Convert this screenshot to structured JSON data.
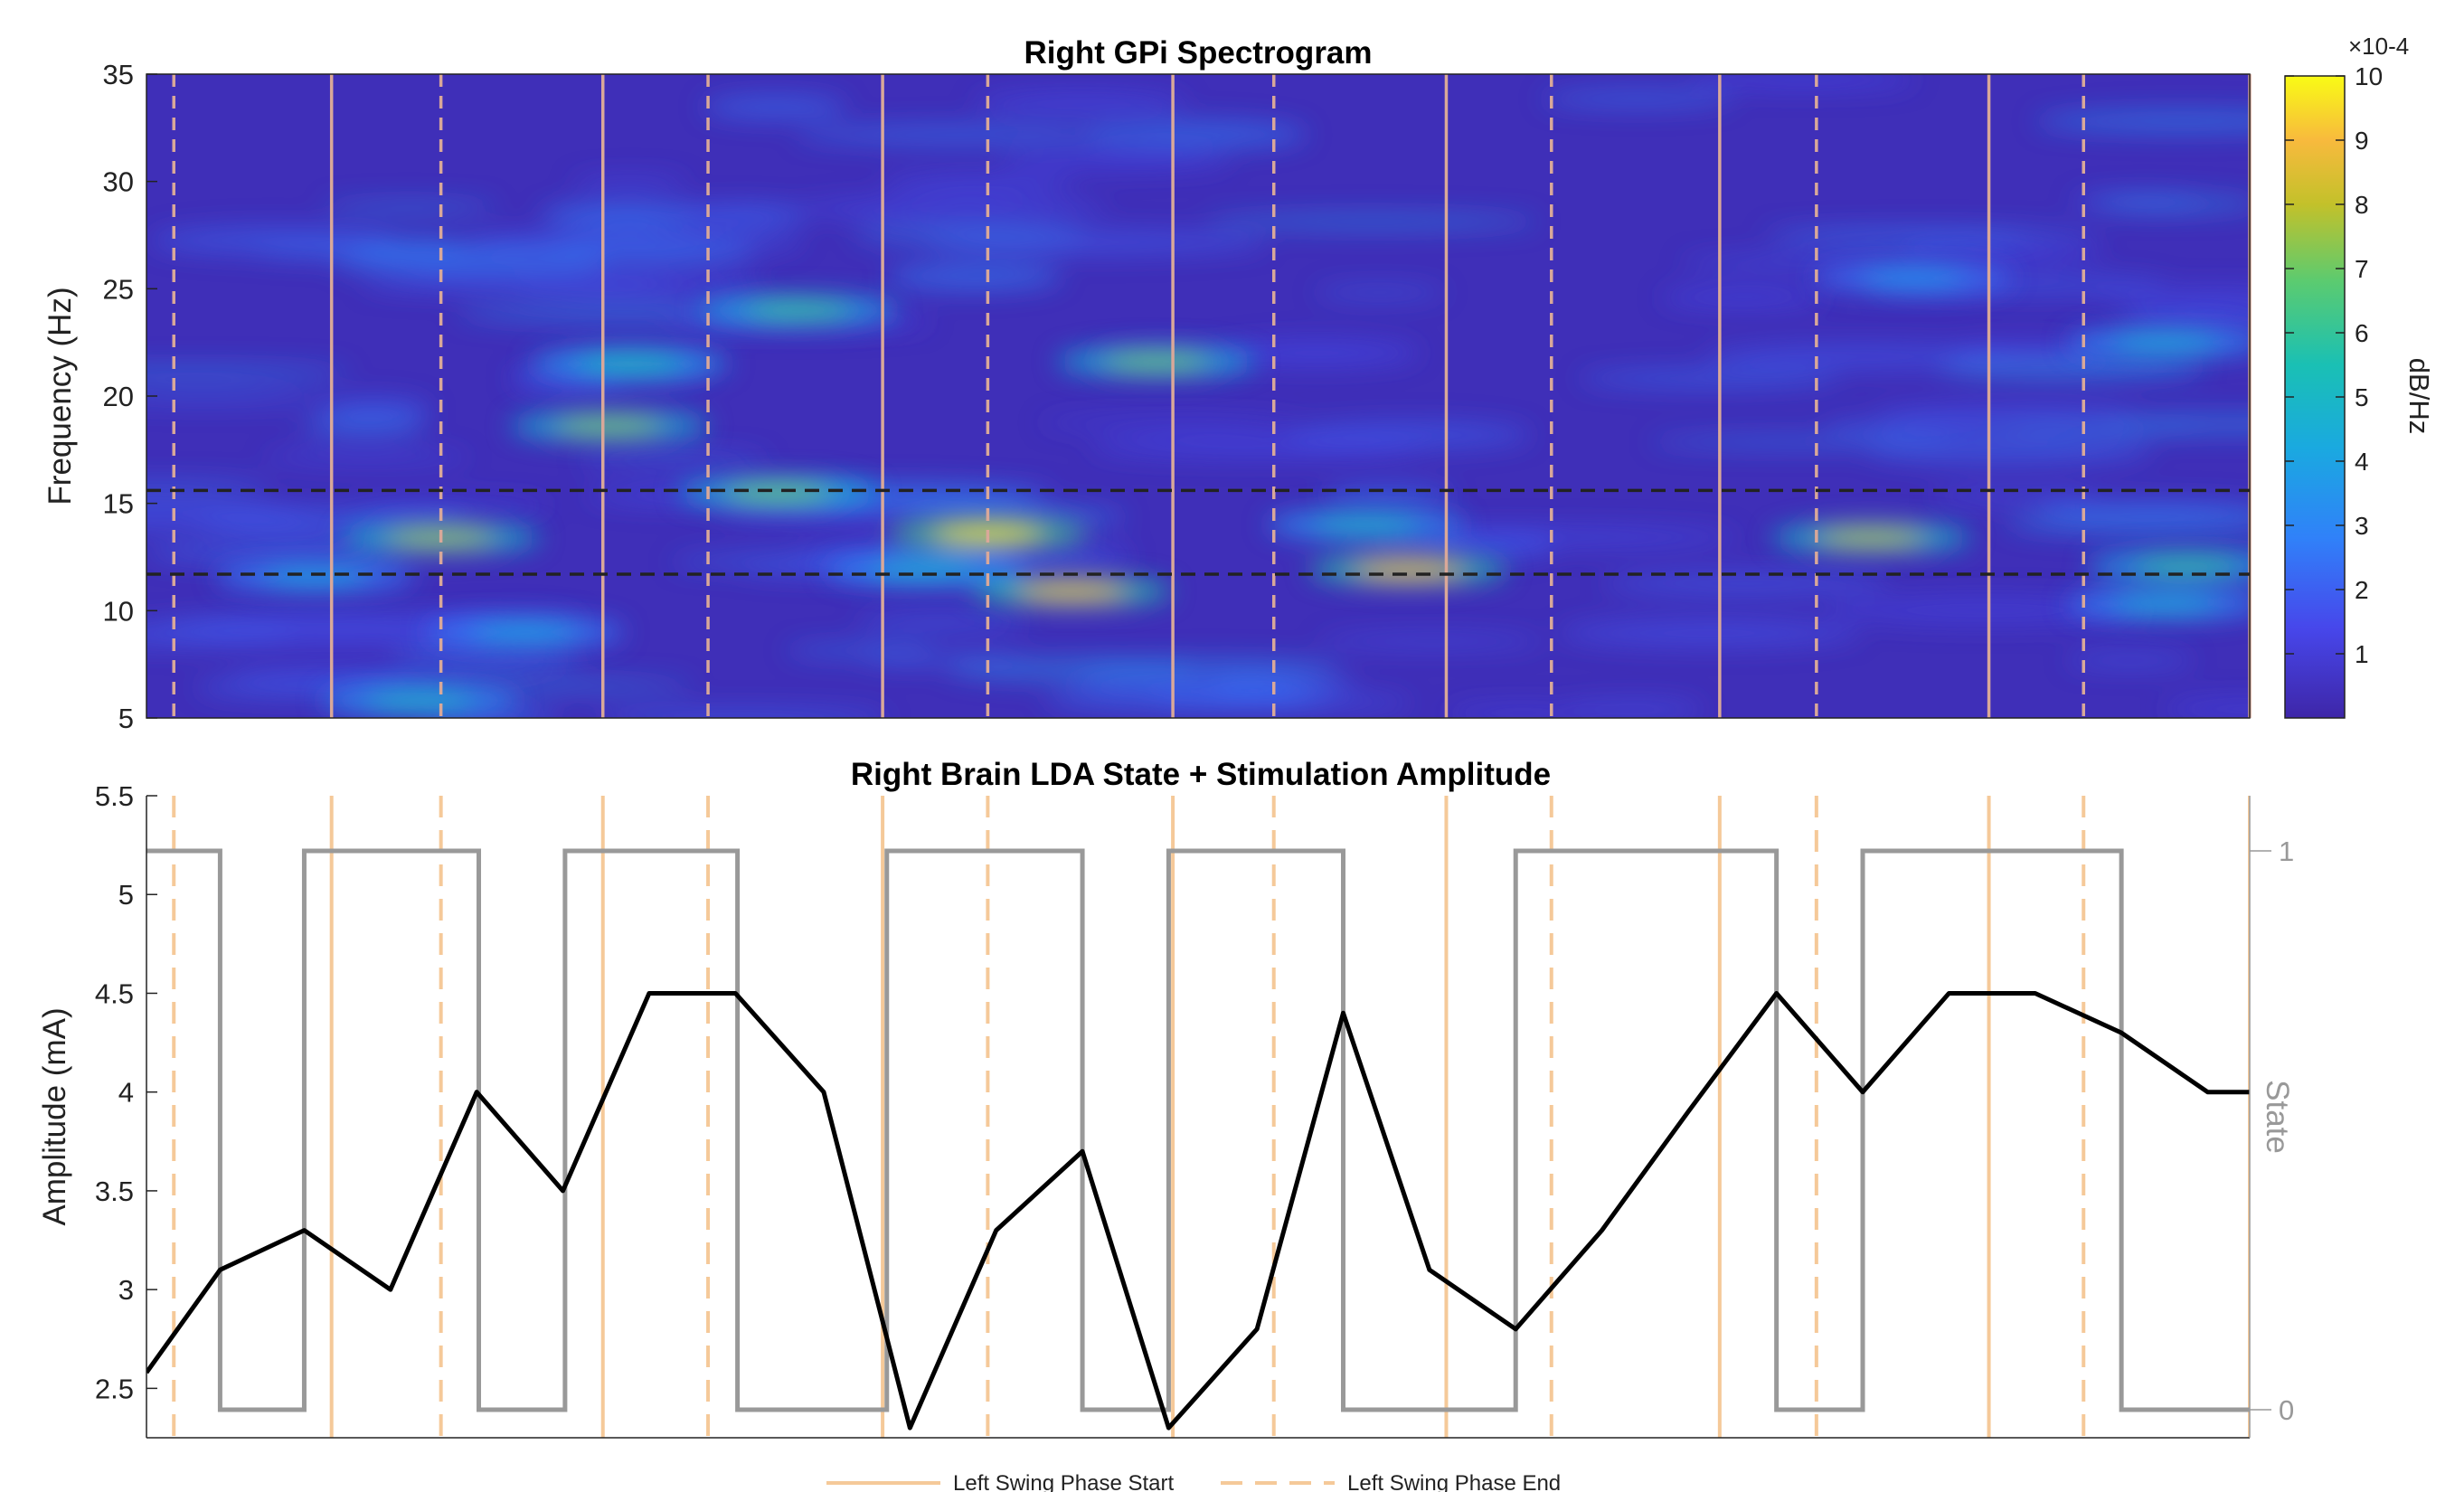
{
  "chart_data": [
    {
      "type": "heatmap",
      "title": "Right GPi Spectrogram",
      "ylabel": "Frequency (Hz)",
      "ylim": [
        5,
        35
      ],
      "yticks": [
        "5",
        "10",
        "15",
        "20",
        "25",
        "30",
        "35"
      ],
      "colorbar": {
        "label": "dB/Hz",
        "exponent": "×10-4",
        "range": [
          0,
          10
        ],
        "ticks": [
          "1",
          "2",
          "3",
          "4",
          "5",
          "6",
          "7",
          "8",
          "9",
          "10"
        ]
      },
      "horizontal_dashed_lines_hz": [
        15.6,
        11.7
      ],
      "x_range": [
        0,
        100
      ],
      "swing_start": [
        8.8,
        21.7,
        35.0,
        48.8,
        61.8,
        74.8,
        87.6,
        100
      ],
      "swing_end": [
        1.3,
        14.0,
        26.7,
        40.0,
        53.6,
        66.8,
        79.4,
        92.1
      ],
      "hotspots": [
        {
          "t": 40.0,
          "f": 13.6,
          "v": 9.8
        },
        {
          "t": 44.0,
          "f": 10.9,
          "v": 8.8
        },
        {
          "t": 60.0,
          "f": 11.9,
          "v": 8.8
        },
        {
          "t": 82.0,
          "f": 13.4,
          "v": 7.8
        },
        {
          "t": 14.0,
          "f": 13.4,
          "v": 7.6
        },
        {
          "t": 30.0,
          "f": 15.5,
          "v": 7.0
        },
        {
          "t": 22.0,
          "f": 18.6,
          "v": 7.2
        },
        {
          "t": 48.0,
          "f": 21.6,
          "v": 7.0
        },
        {
          "t": 31.0,
          "f": 24.0,
          "v": 6.2
        },
        {
          "t": 23.0,
          "f": 21.5,
          "v": 5.5
        },
        {
          "t": 97.0,
          "f": 12.1,
          "v": 6.0
        },
        {
          "t": 13.0,
          "f": 5.8,
          "v": 5.0
        },
        {
          "t": 18.0,
          "f": 9.0,
          "v": 4.2
        },
        {
          "t": 96.0,
          "f": 22.5,
          "v": 4.5
        },
        {
          "t": 84.0,
          "f": 25.5,
          "v": 3.6
        },
        {
          "t": 58.0,
          "f": 14.0,
          "v": 5.0
        },
        {
          "t": 96.0,
          "f": 10.3,
          "v": 4.5
        },
        {
          "t": 8.0,
          "f": 11.6,
          "v": 4.2
        },
        {
          "t": 37.0,
          "f": 11.9,
          "v": 4.8
        }
      ]
    },
    {
      "type": "line",
      "title": "Right Brain LDA State + Stimulation Amplitude",
      "ylabel": "Amplitude (mA)",
      "ylim": [
        2.25,
        5.5
      ],
      "yticks": [
        "2.5",
        "3",
        "3.5",
        "4",
        "4.5",
        "5",
        "5.5"
      ],
      "y2label": "State",
      "y2ticks": [
        "0",
        "1"
      ],
      "x_range": [
        0,
        100
      ],
      "series": [
        {
          "x": [
            0,
            3.5,
            7.5,
            11.6,
            15.7,
            19.8,
            23.9,
            28.0,
            32.2,
            36.3,
            40.4,
            44.5,
            48.6,
            52.8,
            56.9,
            61.0,
            65.1,
            69.2,
            73.3,
            77.5,
            81.6,
            85.7,
            89.8,
            93.9,
            98.0,
            100
          ],
          "values": [
            2.58,
            3.1,
            3.3,
            3.0,
            4.0,
            3.5,
            4.5,
            4.5,
            4.0,
            2.3,
            3.3,
            3.7,
            2.3,
            2.8,
            4.4,
            3.1,
            2.8,
            3.3,
            3.9,
            4.5,
            4.0,
            4.5,
            4.5,
            4.3,
            4.0,
            4.0
          ],
          "color": "#000000"
        },
        {
          "axis": "right",
          "x": [
            0,
            3.5,
            3.5,
            7.5,
            7.5,
            15.8,
            15.8,
            19.9,
            19.9,
            28.1,
            28.1,
            35.2,
            35.2,
            44.5,
            44.5,
            48.6,
            48.6,
            56.9,
            56.9,
            65.1,
            65.1,
            77.5,
            77.5,
            81.6,
            81.6,
            93.9,
            93.9,
            100
          ],
          "values": [
            1,
            1,
            0,
            0,
            1,
            1,
            0,
            0,
            1,
            1,
            0,
            0,
            1,
            1,
            0,
            0,
            1,
            1,
            0,
            0,
            1,
            1,
            0,
            0,
            1,
            1,
            0,
            0
          ],
          "color": "#999999"
        }
      ],
      "swing_start": [
        8.8,
        21.7,
        35.0,
        48.8,
        61.8,
        74.8,
        87.6,
        100
      ],
      "swing_end": [
        1.3,
        14.0,
        26.7,
        40.0,
        53.6,
        66.8,
        79.4,
        92.1
      ],
      "swing_color": "#F5C999",
      "legend": {
        "position": "bottom",
        "entries": [
          "Left Swing Phase Start",
          "Left Swing Phase End"
        ]
      }
    }
  ]
}
